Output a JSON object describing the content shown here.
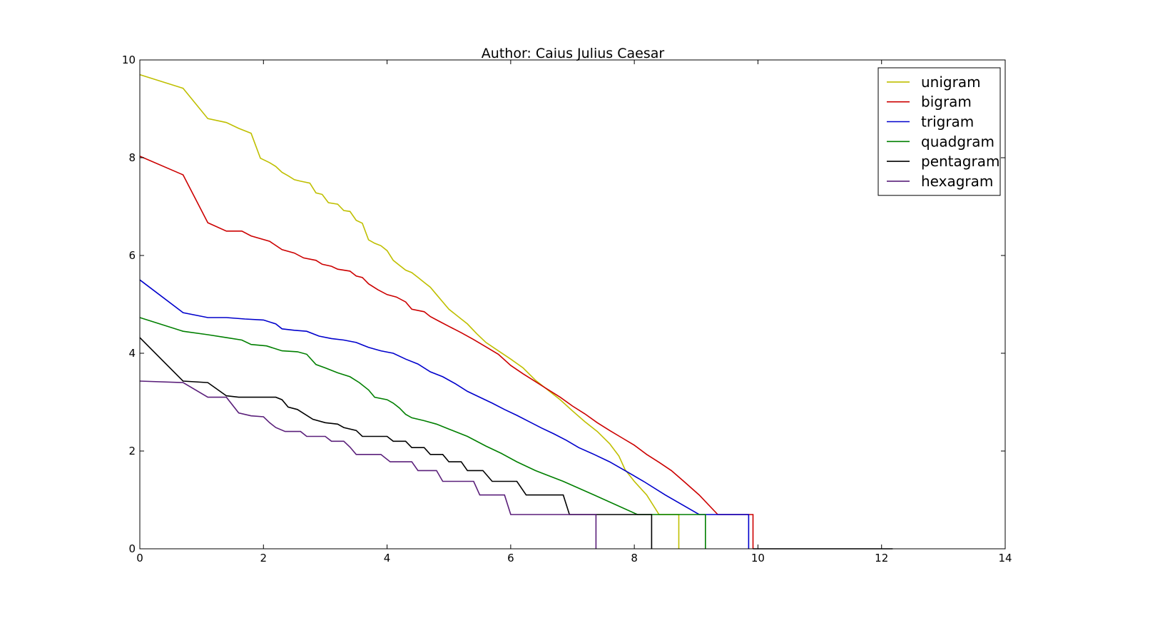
{
  "chart_data": {
    "type": "line",
    "title": "Author: Caius Julius Caesar",
    "xlabel": "",
    "ylabel": "",
    "xlim": [
      0,
      14
    ],
    "ylim": [
      0,
      10
    ],
    "xticks": [
      "0",
      "2",
      "4",
      "6",
      "8",
      "10",
      "12",
      "14"
    ],
    "yticks": [
      "0",
      "2",
      "4",
      "6",
      "8",
      "10"
    ],
    "grid": false,
    "legend_position": "top-right",
    "series": [
      {
        "name": "unigram",
        "color": "#bfbf00",
        "points": [
          [
            0,
            9.7
          ],
          [
            0.7,
            9.42
          ],
          [
            1.1,
            8.8
          ],
          [
            1.4,
            8.72
          ],
          [
            1.6,
            8.6
          ],
          [
            1.8,
            8.5
          ],
          [
            1.95,
            7.99
          ],
          [
            2.1,
            7.9
          ],
          [
            2.2,
            7.82
          ],
          [
            2.3,
            7.7
          ],
          [
            2.4,
            7.63
          ],
          [
            2.5,
            7.55
          ],
          [
            2.6,
            7.52
          ],
          [
            2.75,
            7.48
          ],
          [
            2.85,
            7.28
          ],
          [
            2.95,
            7.25
          ],
          [
            3.05,
            7.08
          ],
          [
            3.2,
            7.05
          ],
          [
            3.3,
            6.92
          ],
          [
            3.4,
            6.9
          ],
          [
            3.5,
            6.72
          ],
          [
            3.6,
            6.66
          ],
          [
            3.7,
            6.32
          ],
          [
            3.8,
            6.25
          ],
          [
            3.9,
            6.2
          ],
          [
            4.0,
            6.1
          ],
          [
            4.1,
            5.9
          ],
          [
            4.2,
            5.8
          ],
          [
            4.3,
            5.7
          ],
          [
            4.4,
            5.65
          ],
          [
            4.5,
            5.55
          ],
          [
            4.6,
            5.45
          ],
          [
            4.7,
            5.35
          ],
          [
            4.8,
            5.2
          ],
          [
            4.9,
            5.05
          ],
          [
            5.0,
            4.9
          ],
          [
            5.2,
            4.7
          ],
          [
            5.3,
            4.6
          ],
          [
            5.45,
            4.4
          ],
          [
            5.6,
            4.22
          ],
          [
            5.8,
            4.05
          ],
          [
            6.0,
            3.88
          ],
          [
            6.2,
            3.7
          ],
          [
            6.4,
            3.45
          ],
          [
            6.6,
            3.25
          ],
          [
            6.8,
            3.05
          ],
          [
            7.0,
            2.82
          ],
          [
            7.2,
            2.6
          ],
          [
            7.4,
            2.4
          ],
          [
            7.6,
            2.15
          ],
          [
            7.75,
            1.9
          ],
          [
            7.85,
            1.62
          ],
          [
            8.0,
            1.38
          ],
          [
            8.2,
            1.1
          ],
          [
            8.4,
            0.7
          ],
          [
            8.72,
            0.7
          ],
          [
            8.72,
            0
          ]
        ]
      },
      {
        "name": "bigram",
        "color": "#cc0000",
        "points": [
          [
            0,
            8.03
          ],
          [
            0.7,
            7.65
          ],
          [
            1.1,
            6.67
          ],
          [
            1.4,
            6.5
          ],
          [
            1.65,
            6.5
          ],
          [
            1.8,
            6.4
          ],
          [
            2.1,
            6.29
          ],
          [
            2.3,
            6.12
          ],
          [
            2.5,
            6.05
          ],
          [
            2.65,
            5.95
          ],
          [
            2.85,
            5.9
          ],
          [
            2.95,
            5.82
          ],
          [
            3.1,
            5.78
          ],
          [
            3.2,
            5.72
          ],
          [
            3.4,
            5.68
          ],
          [
            3.5,
            5.58
          ],
          [
            3.6,
            5.55
          ],
          [
            3.7,
            5.42
          ],
          [
            3.85,
            5.3
          ],
          [
            4.0,
            5.2
          ],
          [
            4.15,
            5.15
          ],
          [
            4.3,
            5.05
          ],
          [
            4.4,
            4.9
          ],
          [
            4.6,
            4.85
          ],
          [
            4.7,
            4.75
          ],
          [
            4.85,
            4.65
          ],
          [
            5.0,
            4.55
          ],
          [
            5.2,
            4.42
          ],
          [
            5.4,
            4.28
          ],
          [
            5.6,
            4.13
          ],
          [
            5.8,
            3.98
          ],
          [
            6.0,
            3.75
          ],
          [
            6.2,
            3.58
          ],
          [
            6.4,
            3.42
          ],
          [
            6.6,
            3.26
          ],
          [
            6.8,
            3.1
          ],
          [
            7.0,
            2.92
          ],
          [
            7.2,
            2.76
          ],
          [
            7.4,
            2.58
          ],
          [
            7.6,
            2.42
          ],
          [
            7.8,
            2.27
          ],
          [
            8.0,
            2.12
          ],
          [
            8.2,
            1.93
          ],
          [
            8.4,
            1.77
          ],
          [
            8.6,
            1.6
          ],
          [
            8.8,
            1.38
          ],
          [
            9.05,
            1.1
          ],
          [
            9.35,
            0.7
          ],
          [
            9.92,
            0.7
          ],
          [
            9.92,
            0
          ]
        ]
      },
      {
        "name": "trigram",
        "color": "#0000cc",
        "points": [
          [
            0,
            5.5
          ],
          [
            0.7,
            4.83
          ],
          [
            1.1,
            4.73
          ],
          [
            1.4,
            4.73
          ],
          [
            1.7,
            4.7
          ],
          [
            2.0,
            4.68
          ],
          [
            2.2,
            4.6
          ],
          [
            2.3,
            4.5
          ],
          [
            2.5,
            4.47
          ],
          [
            2.7,
            4.45
          ],
          [
            2.9,
            4.35
          ],
          [
            3.1,
            4.3
          ],
          [
            3.3,
            4.27
          ],
          [
            3.5,
            4.22
          ],
          [
            3.7,
            4.12
          ],
          [
            3.9,
            4.05
          ],
          [
            4.1,
            4.0
          ],
          [
            4.3,
            3.88
          ],
          [
            4.5,
            3.78
          ],
          [
            4.7,
            3.62
          ],
          [
            4.9,
            3.52
          ],
          [
            5.1,
            3.38
          ],
          [
            5.3,
            3.22
          ],
          [
            5.5,
            3.1
          ],
          [
            5.7,
            2.98
          ],
          [
            5.9,
            2.85
          ],
          [
            6.1,
            2.73
          ],
          [
            6.3,
            2.6
          ],
          [
            6.5,
            2.47
          ],
          [
            6.7,
            2.35
          ],
          [
            6.9,
            2.22
          ],
          [
            7.1,
            2.07
          ],
          [
            7.35,
            1.93
          ],
          [
            7.6,
            1.78
          ],
          [
            7.85,
            1.6
          ],
          [
            8.15,
            1.38
          ],
          [
            8.5,
            1.1
          ],
          [
            9.05,
            0.7
          ],
          [
            9.85,
            0.7
          ],
          [
            9.85,
            0
          ]
        ]
      },
      {
        "name": "quadgram",
        "color": "#007f00",
        "points": [
          [
            0,
            4.73
          ],
          [
            0.7,
            4.45
          ],
          [
            1.1,
            4.38
          ],
          [
            1.4,
            4.32
          ],
          [
            1.65,
            4.27
          ],
          [
            1.8,
            4.18
          ],
          [
            2.05,
            4.15
          ],
          [
            2.3,
            4.05
          ],
          [
            2.55,
            4.03
          ],
          [
            2.7,
            3.98
          ],
          [
            2.85,
            3.77
          ],
          [
            3.0,
            3.7
          ],
          [
            3.2,
            3.6
          ],
          [
            3.4,
            3.52
          ],
          [
            3.55,
            3.4
          ],
          [
            3.7,
            3.25
          ],
          [
            3.8,
            3.1
          ],
          [
            4.0,
            3.05
          ],
          [
            4.1,
            2.98
          ],
          [
            4.2,
            2.88
          ],
          [
            4.3,
            2.75
          ],
          [
            4.4,
            2.68
          ],
          [
            4.6,
            2.62
          ],
          [
            4.8,
            2.55
          ],
          [
            5.0,
            2.45
          ],
          [
            5.3,
            2.3
          ],
          [
            5.6,
            2.1
          ],
          [
            5.85,
            1.95
          ],
          [
            6.1,
            1.78
          ],
          [
            6.4,
            1.6
          ],
          [
            6.85,
            1.38
          ],
          [
            7.35,
            1.1
          ],
          [
            8.05,
            0.7
          ],
          [
            9.15,
            0.7
          ],
          [
            9.15,
            0
          ]
        ]
      },
      {
        "name": "pentagram",
        "color": "#000000",
        "points": [
          [
            0,
            4.32
          ],
          [
            0.7,
            3.43
          ],
          [
            1.1,
            3.4
          ],
          [
            1.4,
            3.13
          ],
          [
            1.6,
            3.1
          ],
          [
            2.2,
            3.1
          ],
          [
            2.3,
            3.05
          ],
          [
            2.4,
            2.9
          ],
          [
            2.55,
            2.85
          ],
          [
            2.65,
            2.77
          ],
          [
            2.8,
            2.65
          ],
          [
            3.0,
            2.58
          ],
          [
            3.2,
            2.55
          ],
          [
            3.3,
            2.48
          ],
          [
            3.5,
            2.42
          ],
          [
            3.6,
            2.3
          ],
          [
            3.8,
            2.3
          ],
          [
            4.0,
            2.3
          ],
          [
            4.1,
            2.2
          ],
          [
            4.3,
            2.2
          ],
          [
            4.4,
            2.07
          ],
          [
            4.6,
            2.07
          ],
          [
            4.7,
            1.93
          ],
          [
            4.9,
            1.93
          ],
          [
            5.0,
            1.78
          ],
          [
            5.2,
            1.78
          ],
          [
            5.3,
            1.6
          ],
          [
            5.55,
            1.6
          ],
          [
            5.7,
            1.38
          ],
          [
            6.1,
            1.38
          ],
          [
            6.25,
            1.1
          ],
          [
            6.85,
            1.1
          ],
          [
            6.95,
            0.7
          ],
          [
            8.28,
            0.7
          ],
          [
            8.28,
            0
          ]
        ]
      },
      {
        "name": "hexagram",
        "color": "#5a1f7a",
        "points": [
          [
            0,
            3.43
          ],
          [
            0.7,
            3.4
          ],
          [
            1.1,
            3.1
          ],
          [
            1.4,
            3.1
          ],
          [
            1.6,
            2.78
          ],
          [
            1.8,
            2.72
          ],
          [
            2.0,
            2.7
          ],
          [
            2.1,
            2.58
          ],
          [
            2.2,
            2.48
          ],
          [
            2.35,
            2.4
          ],
          [
            2.6,
            2.4
          ],
          [
            2.7,
            2.3
          ],
          [
            3.0,
            2.3
          ],
          [
            3.1,
            2.2
          ],
          [
            3.3,
            2.2
          ],
          [
            3.4,
            2.08
          ],
          [
            3.5,
            1.93
          ],
          [
            3.9,
            1.93
          ],
          [
            4.05,
            1.78
          ],
          [
            4.4,
            1.78
          ],
          [
            4.5,
            1.6
          ],
          [
            4.8,
            1.6
          ],
          [
            4.9,
            1.38
          ],
          [
            5.4,
            1.38
          ],
          [
            5.5,
            1.1
          ],
          [
            5.9,
            1.1
          ],
          [
            6.0,
            0.7
          ],
          [
            7.38,
            0.7
          ],
          [
            7.38,
            0
          ]
        ]
      }
    ],
    "tail": {
      "color": "#000000",
      "points": [
        [
          9.92,
          0
        ],
        [
          12.18,
          0
        ]
      ]
    }
  }
}
